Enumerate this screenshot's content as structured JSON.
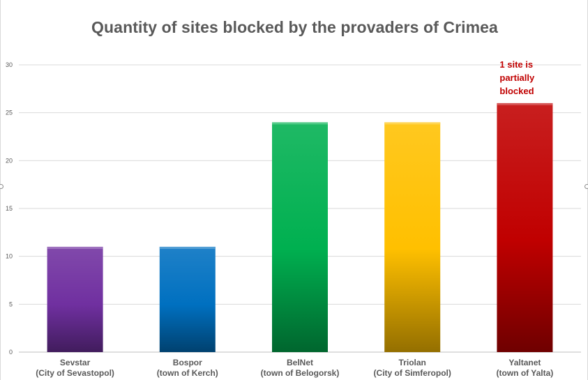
{
  "chart_data": {
    "type": "bar",
    "title": "Quantity of sites blocked by the provaders of Crimea",
    "categories": [
      [
        "Sevstar",
        "(City of Sevastopol)"
      ],
      [
        "Bospor",
        "(town of Kerch)"
      ],
      [
        "BelNet",
        "(town of Belogorsk)"
      ],
      [
        "Triolan",
        "(City of Simferopol)"
      ],
      [
        "Yaltanet",
        "(town of Yalta)"
      ]
    ],
    "values": [
      11,
      11,
      24,
      24,
      26
    ],
    "colors": [
      "#7030a0",
      "#0070c0",
      "#00b050",
      "#ffc000",
      "#c00000"
    ],
    "ylim": [
      0,
      30
    ],
    "yticks": [
      0,
      5,
      10,
      15,
      20,
      25,
      30
    ],
    "grid": true,
    "annotation": {
      "category_index": 4,
      "lines": [
        "1 site is",
        "partially",
        "blocked"
      ],
      "color": "#c00000"
    }
  }
}
